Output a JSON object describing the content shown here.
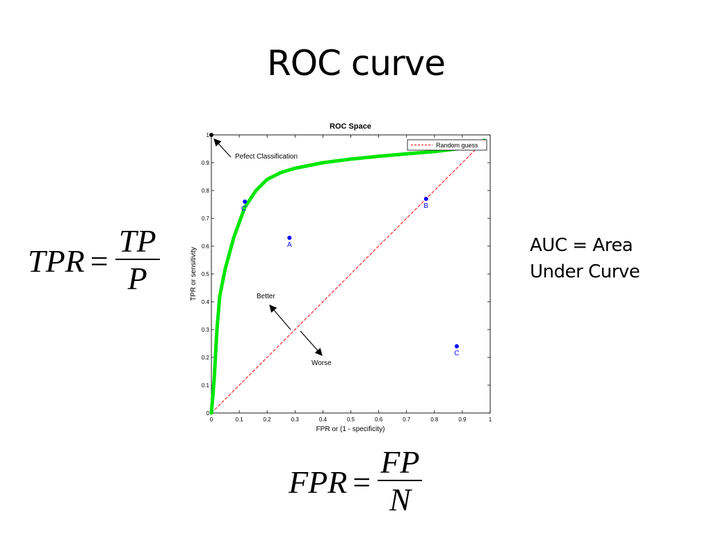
{
  "slide": {
    "title": "ROC curve",
    "auc_note_line1": "AUC = Area",
    "auc_note_line2": "Under Curve"
  },
  "formulas": {
    "tpr": {
      "lhs": "TPR",
      "eq": "=",
      "numerator": "TP",
      "denominator": "P"
    },
    "fpr": {
      "lhs": "FPR",
      "eq": "=",
      "numerator": "FP",
      "denominator": "N"
    }
  },
  "chart_data": {
    "type": "line",
    "title": "ROC Space",
    "xlabel": "FPR or (1 - specificity)",
    "ylabel": "TPR or sensitivity",
    "xlim": [
      0,
      1
    ],
    "ylim": [
      0,
      1
    ],
    "xticks": [
      "0",
      "0.1",
      "0.2",
      "0.3",
      "0.4",
      "0.5",
      "0.6",
      "0.7",
      "0.8",
      "0.9",
      "1"
    ],
    "yticks": [
      "0",
      "0.1",
      "0.2",
      "0.3",
      "0.4",
      "0.5",
      "0.6",
      "0.7",
      "0.8",
      "0.9",
      "1"
    ],
    "grid": false,
    "legend": {
      "position": "top-right",
      "entries": [
        "Random guess"
      ]
    },
    "series": [
      {
        "name": "Random guess",
        "style": "dashed",
        "color": "#ff0000",
        "x": [
          0,
          0.98
        ],
        "y": [
          0,
          0.98
        ]
      },
      {
        "style": "solid-thick",
        "color": "#00e600",
        "x": [
          0,
          0.01,
          0.02,
          0.03,
          0.05,
          0.08,
          0.12,
          0.16,
          0.2,
          0.25,
          0.3,
          0.4,
          0.5,
          0.6,
          0.7,
          0.8,
          0.9,
          0.98
        ],
        "y": [
          0,
          0.12,
          0.3,
          0.42,
          0.52,
          0.63,
          0.74,
          0.8,
          0.84,
          0.865,
          0.88,
          0.9,
          0.913,
          0.923,
          0.932,
          0.94,
          0.952,
          0.98
        ]
      }
    ],
    "points": [
      {
        "label": "A",
        "x": 0.28,
        "y": 0.63,
        "color": "#0000ff"
      },
      {
        "label": "B",
        "x": 0.77,
        "y": 0.77,
        "color": "#0000ff"
      },
      {
        "label": "C",
        "x": 0.88,
        "y": 0.24,
        "color": "#0000ff"
      },
      {
        "label": "C`",
        "x": 0.12,
        "y": 0.76,
        "color": "#0000ff"
      },
      {
        "label": "",
        "x": 0,
        "y": 1,
        "color": "#000000"
      }
    ],
    "annotations": {
      "perfect": "Pefect Classification",
      "better": "Better",
      "worse": "Worse"
    }
  }
}
